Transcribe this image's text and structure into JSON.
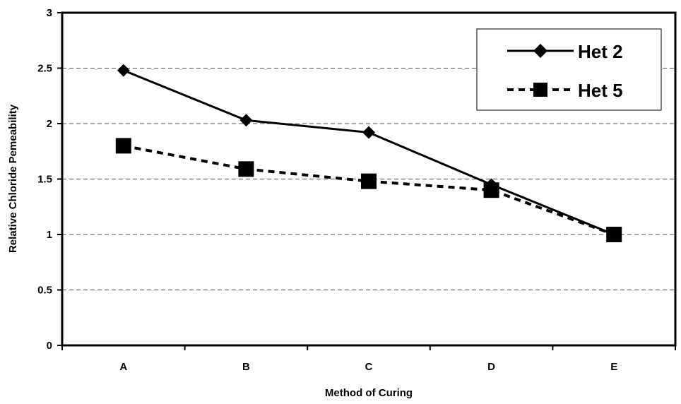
{
  "chart_data": {
    "type": "line",
    "title": "",
    "xlabel": "Method of Curing",
    "ylabel": "Relative Chloride Pemeability",
    "categories": [
      "A",
      "B",
      "C",
      "D",
      "E"
    ],
    "ylim": [
      0,
      3
    ],
    "yticks": [
      "0",
      "0.5",
      "1",
      "1.5",
      "2",
      "2.5",
      "3"
    ],
    "grid": "horizontal dashed",
    "legend_position": "top-right",
    "series": [
      {
        "name": "Het 2",
        "values": [
          2.48,
          2.03,
          1.92,
          1.45,
          1.0
        ],
        "line": "solid",
        "marker": "diamond",
        "color": "#000000"
      },
      {
        "name": "Het 5",
        "values": [
          1.8,
          1.59,
          1.48,
          1.4,
          1.0
        ],
        "line": "dashed",
        "marker": "square",
        "color": "#000000"
      }
    ]
  }
}
